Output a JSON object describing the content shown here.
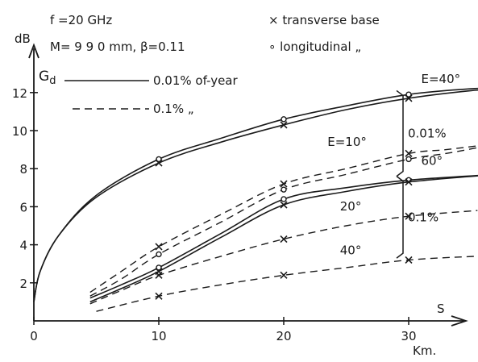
{
  "chart_data": {
    "type": "line",
    "header": {
      "freq": "f =20 GHz",
      "params": "M= 9 9 0 mm, β=0.11",
      "legend_marker_cross": "× transverse base",
      "legend_marker_circle": "∘ longitudinal   „"
    },
    "ylabel": "dB",
    "ylabel_sub": "G",
    "ylabel_subscript": "d",
    "xlabel": "S",
    "xunit": "Km.",
    "xlim": [
      0,
      38
    ],
    "ylim": [
      0,
      13
    ],
    "x_ticks": [
      0,
      10,
      20,
      30
    ],
    "x_tick_labels": [
      "0",
      "10",
      "20",
      "30"
    ],
    "y_ticks": [
      2,
      4,
      6,
      8,
      10,
      12
    ],
    "y_tick_labels": [
      "2",
      "4",
      "6",
      "8",
      "10",
      "12"
    ],
    "legend": [
      {
        "style": "solid",
        "label": "0.01% of-year"
      },
      {
        "style": "dashed",
        "label": "0.1%   „"
      }
    ],
    "brackets": [
      {
        "label": "0.01%",
        "y_range": [
          7.6,
          12.1
        ]
      },
      {
        "label": "0.1%",
        "y_range": [
          3.3,
          7.6
        ]
      }
    ],
    "series": [
      {
        "style": "solid",
        "marker": "circle",
        "x": [
          0,
          0.5,
          2,
          5,
          10,
          15,
          20,
          25,
          30,
          35,
          37
        ],
        "y": [
          1.0,
          2.6,
          4.5,
          6.6,
          8.5,
          9.6,
          10.6,
          11.3,
          11.9,
          12.2,
          12.2
        ]
      },
      {
        "style": "solid",
        "marker": "cross",
        "x": [
          0,
          0.5,
          2,
          5,
          10,
          15,
          20,
          25,
          30,
          35,
          37
        ],
        "y": [
          1.0,
          2.6,
          4.5,
          6.5,
          8.3,
          9.4,
          10.3,
          11.1,
          11.7,
          12.1,
          12.15
        ]
      },
      {
        "style": "dashed",
        "marker": "circle",
        "annotation": "E=10°",
        "x": [
          4.5,
          7,
          10,
          15,
          20,
          25,
          30,
          33,
          35.5
        ],
        "y": [
          1.3,
          2.2,
          3.5,
          5.2,
          6.9,
          7.7,
          8.5,
          8.8,
          9.1
        ]
      },
      {
        "style": "dashed",
        "marker": "cross",
        "x": [
          4.5,
          7,
          10,
          15,
          20,
          25,
          30,
          33,
          35.5
        ],
        "y": [
          1.5,
          2.6,
          3.9,
          5.6,
          7.2,
          8.0,
          8.8,
          9.0,
          9.2
        ]
      },
      {
        "style": "solid",
        "marker": "circle",
        "annotation": "60°",
        "x": [
          4.5,
          7,
          10,
          15,
          20,
          25,
          30,
          37
        ],
        "y": [
          1.2,
          1.9,
          2.8,
          4.6,
          6.4,
          7.0,
          7.4,
          7.7
        ]
      },
      {
        "style": "solid",
        "marker": "cross",
        "x": [
          4.5,
          7,
          10,
          15,
          20,
          25,
          30,
          37
        ],
        "y": [
          1.0,
          1.7,
          2.6,
          4.4,
          6.1,
          6.8,
          7.3,
          7.7
        ]
      },
      {
        "style": "dashed",
        "marker": "cross",
        "annotation": "20°",
        "x": [
          4.5,
          7,
          10,
          15,
          20,
          25,
          30,
          35.5
        ],
        "y": [
          0.9,
          1.6,
          2.4,
          3.4,
          4.3,
          5.0,
          5.5,
          5.8
        ]
      },
      {
        "style": "dashed",
        "marker": "cross",
        "annotation": "40°",
        "x": [
          5,
          10,
          15,
          20,
          25,
          30,
          35.5
        ],
        "y": [
          0.5,
          1.3,
          1.9,
          2.4,
          2.8,
          3.2,
          3.4
        ]
      }
    ],
    "annotations": [
      {
        "text": "E=40°",
        "x": 31,
        "y": 12.5
      },
      {
        "text": "E=10°",
        "x": 23.5,
        "y": 9.2
      },
      {
        "text": "60°",
        "x": 31,
        "y": 8.2
      },
      {
        "text": "20°",
        "x": 24.5,
        "y": 5.8
      },
      {
        "text": "40°",
        "x": 24.5,
        "y": 3.5
      }
    ]
  }
}
